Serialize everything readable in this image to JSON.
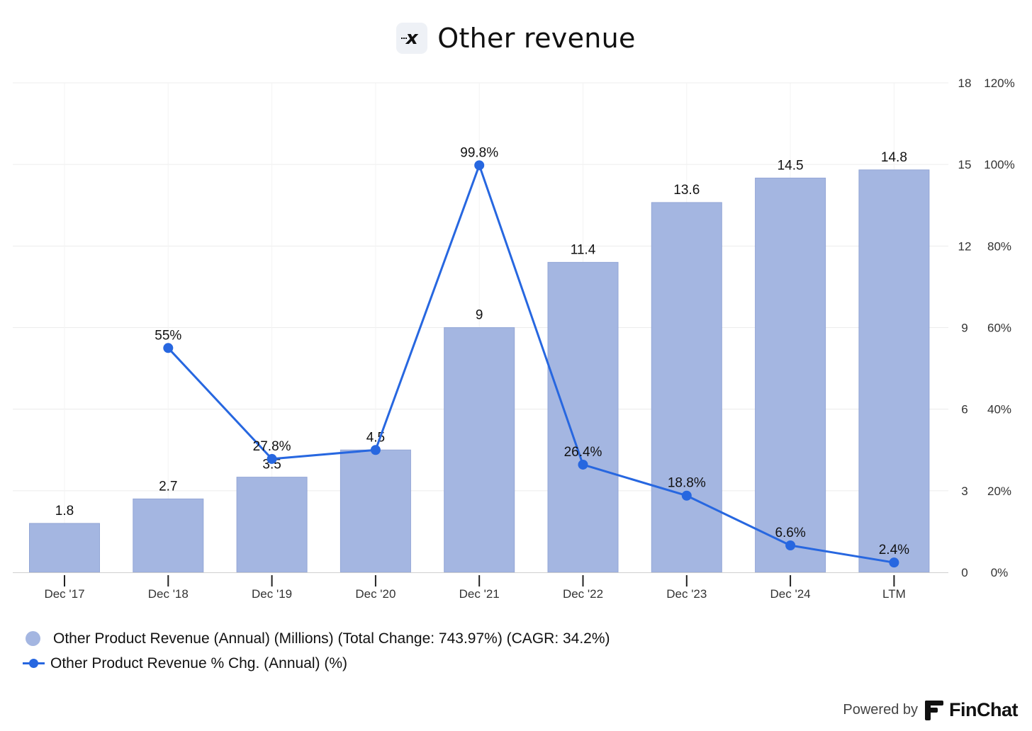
{
  "title": "Other revenue",
  "colors": {
    "bar": "#a4b6e1",
    "bar_stroke": "#93a6d6",
    "line": "#2767e0",
    "grid": "#ececec",
    "axis_text": "#333333"
  },
  "chart_data": {
    "type": "bar+line",
    "categories": [
      "Dec '17",
      "Dec '18",
      "Dec '19",
      "Dec '20",
      "Dec '21",
      "Dec '22",
      "Dec '23",
      "Dec '24",
      "LTM"
    ],
    "series": [
      {
        "name": "Other Product Revenue (Annual) (Millions) (Total Change: 743.97%) (CAGR: 34.2%)",
        "type": "bar",
        "axis": "left",
        "values": [
          1.8,
          2.7,
          3.5,
          4.5,
          9,
          11.4,
          13.6,
          14.5,
          14.8
        ],
        "labels": [
          "1.8",
          "2.7",
          "3.5",
          "4.5",
          "9",
          "11.4",
          "13.6",
          "14.5",
          "14.8"
        ]
      },
      {
        "name": "Other Product Revenue % Chg. (Annual) (%)",
        "type": "line",
        "axis": "right",
        "values": [
          null,
          55,
          27.8,
          30,
          99.8,
          26.4,
          18.8,
          6.6,
          2.4
        ],
        "labels": [
          "",
          "55%",
          "27.8%",
          "",
          "99.8%",
          "26.4%",
          "18.8%",
          "6.6%",
          "2.4%"
        ]
      }
    ],
    "y_left": {
      "min": 0,
      "max": 18,
      "ticks": [
        "0",
        "3",
        "6",
        "9",
        "12",
        "15",
        "18"
      ]
    },
    "y_right": {
      "min": 0,
      "max": 120,
      "ticks": [
        "0%",
        "20%",
        "40%",
        "60%",
        "80%",
        "100%",
        "120%"
      ]
    },
    "grid": true,
    "legend_position": "bottom-left"
  },
  "legend": {
    "bar_label": "Other Product Revenue (Annual) (Millions) (Total Change: 743.97%) (CAGR: 34.2%)",
    "line_label": "Other Product Revenue % Chg. (Annual) (%)"
  },
  "footer": {
    "powered_by": "Powered by",
    "brand": "FinChat"
  },
  "icons": {
    "title_logo": "x-logo-icon",
    "brand_logo": "finchat-logo-icon"
  }
}
